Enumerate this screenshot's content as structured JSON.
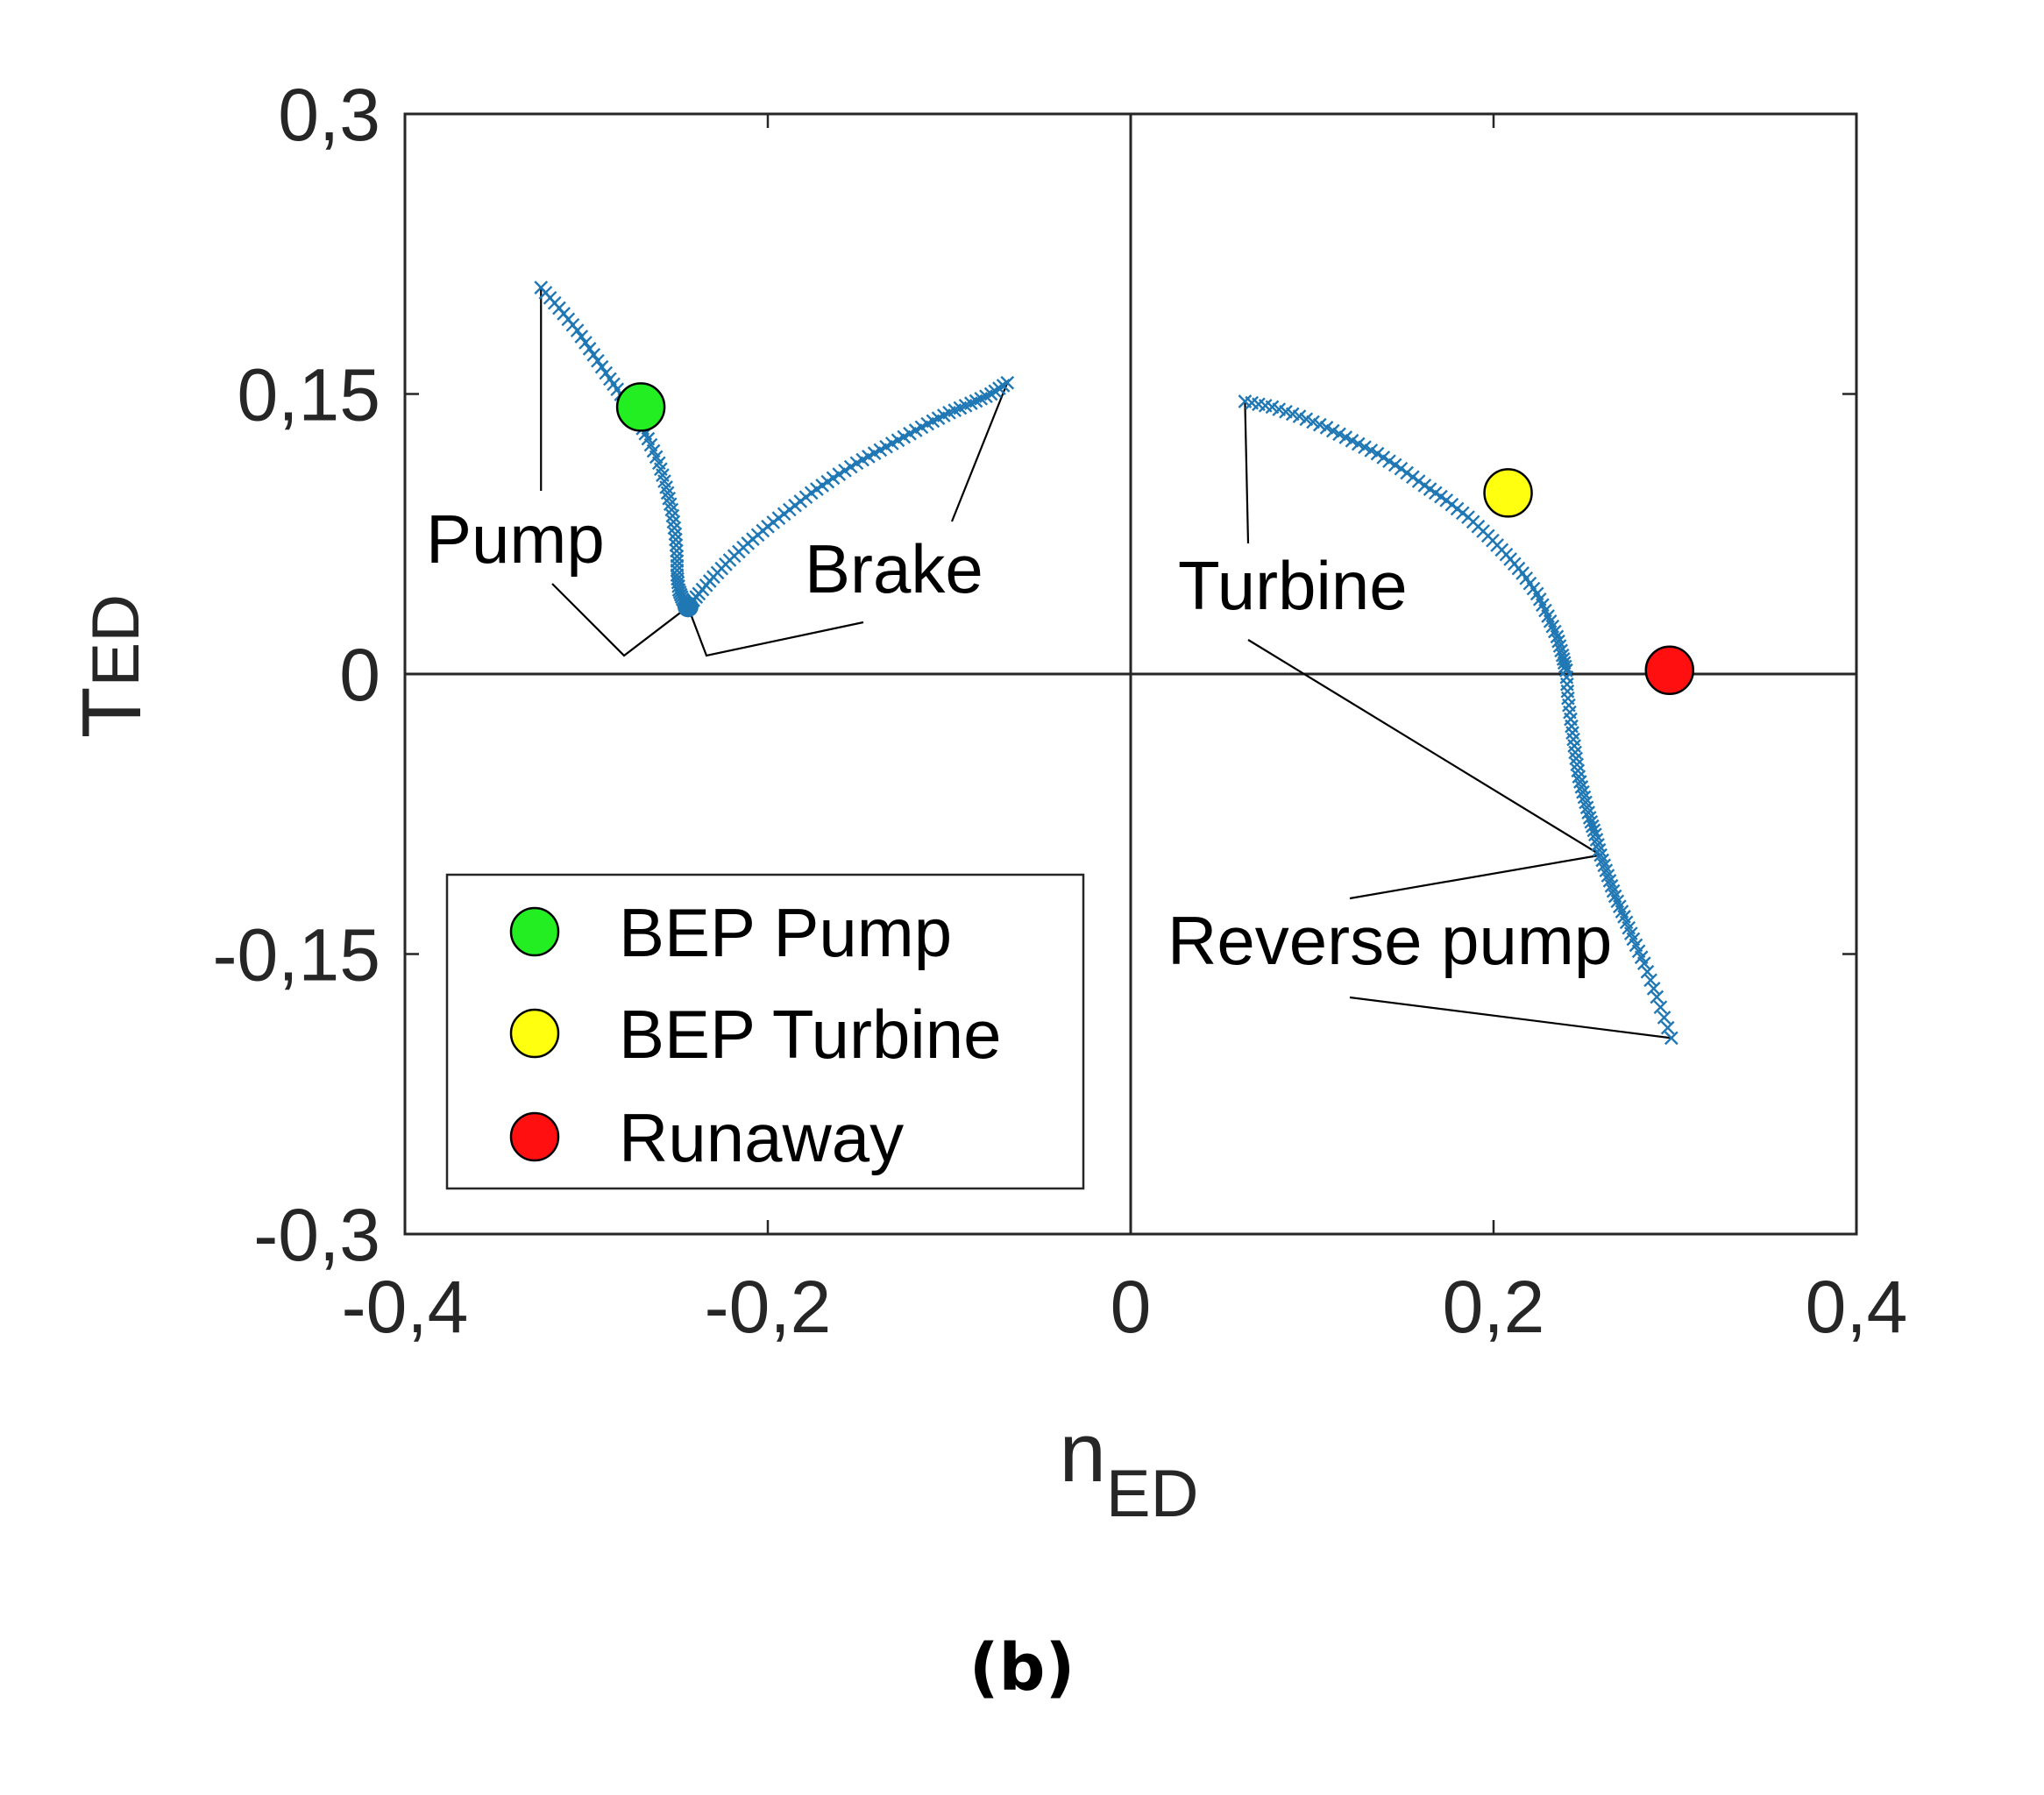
{
  "chart_data": {
    "type": "scatter",
    "xlabel_main": "n",
    "xlabel_sub": "ED",
    "ylabel_main": "T",
    "ylabel_sub": "ED",
    "xlim": [
      -0.4,
      0.4
    ],
    "ylim": [
      -0.3,
      0.3
    ],
    "xticks": [
      -0.4,
      -0.2,
      0,
      0.2,
      0.4
    ],
    "yticks": [
      -0.3,
      -0.15,
      0,
      0.15,
      0.3
    ],
    "xtick_labels": [
      "-0,4",
      "-0,2",
      "0",
      "0,2",
      "0,4"
    ],
    "ytick_labels": [
      "-0,3",
      "-0,15",
      "0",
      "0,15",
      "0,3"
    ],
    "grid": false,
    "zero_lines": true,
    "series_color": "#1f77b4",
    "marker": "x",
    "curves": [
      {
        "id": "pump",
        "x": [
          -0.325,
          -0.315,
          -0.305,
          -0.296,
          -0.287,
          -0.279,
          -0.272,
          -0.266,
          -0.26,
          -0.256,
          -0.253,
          -0.251,
          -0.25,
          -0.25,
          -0.249,
          -0.247,
          -0.244
        ],
        "y": [
          0.207,
          0.196,
          0.184,
          0.171,
          0.158,
          0.147,
          0.137,
          0.126,
          0.113,
          0.1,
          0.088,
          0.075,
          0.063,
          0.053,
          0.045,
          0.04,
          0.036
        ]
      },
      {
        "id": "brake",
        "x": [
          -0.244,
          -0.238,
          -0.23,
          -0.221,
          -0.211,
          -0.2,
          -0.188,
          -0.176,
          -0.164,
          -0.151,
          -0.138,
          -0.125,
          -0.112,
          -0.1,
          -0.088,
          -0.077,
          -0.068
        ],
        "y": [
          0.036,
          0.043,
          0.052,
          0.061,
          0.07,
          0.079,
          0.088,
          0.097,
          0.105,
          0.113,
          0.12,
          0.127,
          0.134,
          0.14,
          0.145,
          0.15,
          0.156
        ]
      },
      {
        "id": "turbine",
        "x": [
          0.063,
          0.078,
          0.093,
          0.108,
          0.122,
          0.136,
          0.149,
          0.162,
          0.174,
          0.186,
          0.197,
          0.207,
          0.216,
          0.224,
          0.23,
          0.235,
          0.238,
          0.24
        ],
        "y": [
          0.146,
          0.143,
          0.138,
          0.132,
          0.125,
          0.118,
          0.11,
          0.101,
          0.093,
          0.084,
          0.074,
          0.064,
          0.054,
          0.043,
          0.031,
          0.02,
          0.01,
          0.002
        ]
      },
      {
        "id": "reverse-pump",
        "x": [
          0.24,
          0.241,
          0.243,
          0.245,
          0.247,
          0.25,
          0.253,
          0.256,
          0.259,
          0.263,
          0.267,
          0.272,
          0.277,
          0.283,
          0.29,
          0.298
        ],
        "y": [
          0.002,
          -0.013,
          -0.028,
          -0.042,
          -0.055,
          -0.066,
          -0.077,
          -0.086,
          -0.097,
          -0.108,
          -0.119,
          -0.13,
          -0.142,
          -0.155,
          -0.173,
          -0.195
        ]
      }
    ],
    "special_points": [
      {
        "name": "BEP Pump",
        "x": -0.27,
        "y": 0.143,
        "color": "#22ee22"
      },
      {
        "name": "BEP Turbine",
        "x": 0.208,
        "y": 0.097,
        "color": "#ffff10"
      },
      {
        "name": "Runaway",
        "x": 0.297,
        "y": 0.002,
        "color": "#ff0f0f"
      }
    ],
    "annotations": [
      {
        "text": "Pump"
      },
      {
        "text": "Brake"
      },
      {
        "text": "Turbine"
      },
      {
        "text": "Reverse pump"
      }
    ],
    "legend": {
      "position": "bottom-left",
      "entries": [
        "BEP Pump",
        "BEP Turbine",
        "Runaway"
      ]
    }
  },
  "caption": "(b)"
}
